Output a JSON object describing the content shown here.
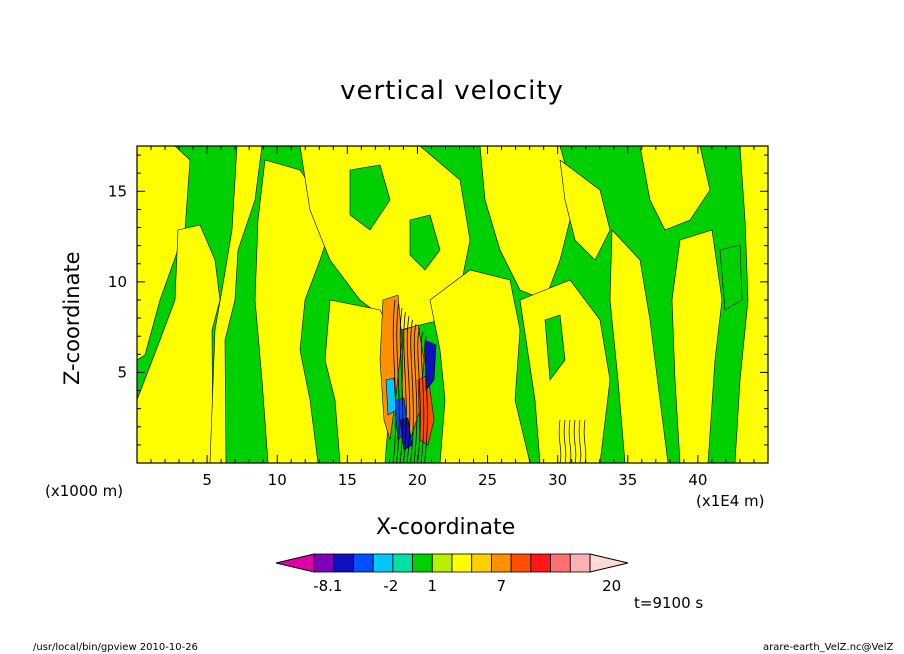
{
  "chart_data": {
    "type": "heatmap",
    "title": "vertical velocity",
    "xlabel": "X-coordinate",
    "ylabel": "Z-coordinate",
    "x_unit_left": "(x1000 m)",
    "x_unit_right": "(x1E4 m)",
    "xlim": [
      0,
      45
    ],
    "ylim": [
      0,
      17.5
    ],
    "x_ticks": [
      5,
      10,
      15,
      20,
      25,
      30,
      35,
      40
    ],
    "y_ticks": [
      5,
      10,
      15
    ],
    "colorbar": {
      "colors": [
        "#e000a8",
        "#8000b8",
        "#1010c0",
        "#0050ff",
        "#00c8ff",
        "#00e0a0",
        "#00d000",
        "#b8f000",
        "#ffff00",
        "#ffd000",
        "#ff9000",
        "#ff5000",
        "#ff1818",
        "#ff7070",
        "#ffb0b0",
        "#ffd8d8"
      ],
      "labels": [
        "-8.1",
        "-2",
        "1",
        "7",
        "20"
      ]
    },
    "time_label": "t=9100 s"
  },
  "footer": {
    "left": "/usr/local/bin/gpview   2010-10-26",
    "right": "arare-earth_VelZ.nc@VelZ"
  }
}
